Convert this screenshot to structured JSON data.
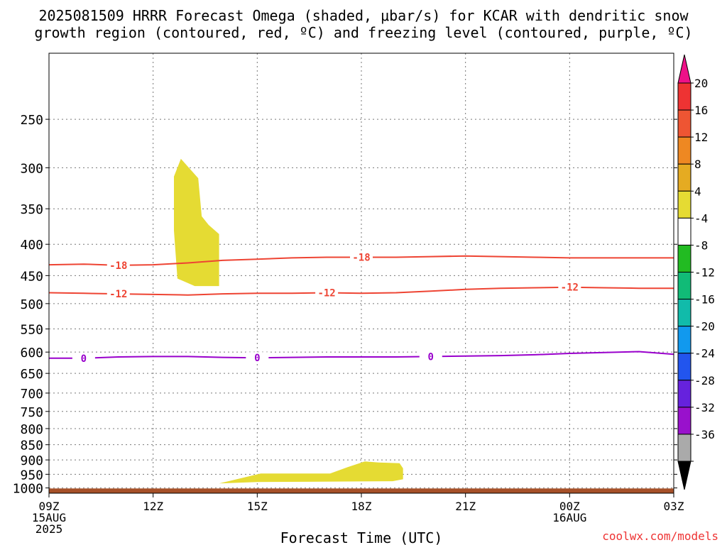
{
  "title_line1": "2025081509 HRRR Forecast Omega (shaded, μbar/s) for KCAR with dendritic snow",
  "title_line2": "growth region (contoured, red, ºC) and freezing level (contoured, purple, ºC)",
  "xlabel": "Forecast Time (UTC)",
  "credit": "coolwx.com/models",
  "chart_data": {
    "type": "contour",
    "x_range_hours": [
      0,
      18
    ],
    "y_axis": {
      "scale": "log-pressure",
      "range_mb": [
        195,
        1020
      ],
      "inverted": true
    },
    "x_ticks": [
      {
        "hour": 0,
        "lines": [
          "09Z",
          "15AUG",
          "2025"
        ]
      },
      {
        "hour": 3,
        "lines": [
          "12Z"
        ]
      },
      {
        "hour": 6,
        "lines": [
          "15Z"
        ]
      },
      {
        "hour": 9,
        "lines": [
          "18Z"
        ]
      },
      {
        "hour": 12,
        "lines": [
          "21Z"
        ]
      },
      {
        "hour": 15,
        "lines": [
          "00Z",
          "16AUG"
        ]
      },
      {
        "hour": 18,
        "lines": [
          "03Z"
        ]
      }
    ],
    "y_ticks": [
      250,
      300,
      350,
      400,
      450,
      500,
      550,
      600,
      650,
      700,
      750,
      800,
      850,
      900,
      950,
      1000
    ],
    "grid": true,
    "contours": [
      {
        "name": "-18",
        "color": "#ee4433",
        "points": [
          [
            0,
            432
          ],
          [
            1,
            431
          ],
          [
            2,
            433
          ],
          [
            3,
            432
          ],
          [
            4,
            429
          ],
          [
            5,
            425
          ],
          [
            6,
            423
          ],
          [
            7,
            421
          ],
          [
            8,
            420
          ],
          [
            9,
            420
          ],
          [
            10,
            420
          ],
          [
            11,
            419
          ],
          [
            12,
            418
          ],
          [
            13,
            419
          ],
          [
            14,
            420
          ],
          [
            15,
            421
          ],
          [
            16,
            421
          ],
          [
            17,
            421
          ],
          [
            18,
            421
          ]
        ],
        "label_hours": [
          2,
          9
        ]
      },
      {
        "name": "-12",
        "color": "#ee4433",
        "points": [
          [
            0,
            480
          ],
          [
            1,
            481
          ],
          [
            2,
            482
          ],
          [
            3,
            483
          ],
          [
            4,
            484
          ],
          [
            5,
            482
          ],
          [
            6,
            481
          ],
          [
            7,
            481
          ],
          [
            8,
            480
          ],
          [
            9,
            481
          ],
          [
            10,
            480
          ],
          [
            11,
            477
          ],
          [
            12,
            474
          ],
          [
            13,
            472
          ],
          [
            14,
            471
          ],
          [
            15,
            470
          ],
          [
            16,
            471
          ],
          [
            17,
            472
          ],
          [
            18,
            472
          ]
        ],
        "label_hours": [
          2,
          8,
          15
        ]
      },
      {
        "name": "0",
        "color": "#9900cc",
        "points": [
          [
            0,
            614
          ],
          [
            1,
            614
          ],
          [
            2,
            611
          ],
          [
            3,
            610
          ],
          [
            4,
            610
          ],
          [
            5,
            612
          ],
          [
            6,
            613
          ],
          [
            7,
            612
          ],
          [
            8,
            611
          ],
          [
            9,
            611
          ],
          [
            10,
            611
          ],
          [
            11,
            610
          ],
          [
            12,
            609
          ],
          [
            13,
            608
          ],
          [
            14,
            606
          ],
          [
            15,
            603
          ],
          [
            16,
            601
          ],
          [
            17,
            599
          ],
          [
            18,
            605
          ]
        ],
        "label_hours": [
          1,
          6,
          11
        ]
      }
    ],
    "shaded_regions": [
      {
        "value_range": [
          4,
          8
        ],
        "color": "#e5db33",
        "points": [
          [
            3.6,
            310
          ],
          [
            3.8,
            290
          ],
          [
            4.3,
            312
          ],
          [
            4.4,
            360
          ],
          [
            4.6,
            372
          ],
          [
            4.9,
            385
          ],
          [
            4.9,
            468
          ],
          [
            4.2,
            468
          ],
          [
            3.7,
            455
          ],
          [
            3.6,
            380
          ],
          [
            3.6,
            330
          ]
        ]
      },
      {
        "value_range": [
          4,
          8
        ],
        "color": "#e5db33",
        "points": [
          [
            4.9,
            983
          ],
          [
            5.5,
            965
          ],
          [
            6.1,
            947
          ],
          [
            8.1,
            947
          ],
          [
            8.6,
            925
          ],
          [
            9.1,
            905
          ],
          [
            9.5,
            909
          ],
          [
            10.1,
            911
          ],
          [
            10.2,
            929
          ],
          [
            10.2,
            968
          ],
          [
            9.9,
            975
          ],
          [
            7.5,
            977
          ],
          [
            6.0,
            978
          ]
        ]
      }
    ],
    "terrain": {
      "color": "#a65028",
      "label": "below ground",
      "top_mb": 1002
    },
    "colorbar": {
      "entries": [
        {
          "color": "#ee1188",
          "label": ""
        },
        {
          "color": "#ee3333",
          "label": "20"
        },
        {
          "color": "#ee5533",
          "label": "16"
        },
        {
          "color": "#ee8822",
          "label": "12"
        },
        {
          "color": "#e5ab22",
          "label": "8"
        },
        {
          "color": "#e5db33",
          "label": "4"
        },
        {
          "color": "#ffffff",
          "label": "-4"
        },
        {
          "color": "#22bb22",
          "label": "-8"
        },
        {
          "color": "#11bb77",
          "label": "-12"
        },
        {
          "color": "#11bbaa",
          "label": "-16"
        },
        {
          "color": "#1199ee",
          "label": "-20"
        },
        {
          "color": "#2255ee",
          "label": "-24"
        },
        {
          "color": "#6622dd",
          "label": "-28"
        },
        {
          "color": "#9911cc",
          "label": "-32"
        },
        {
          "color": "#aaaaaa",
          "label": "-36"
        },
        {
          "color": "#000000",
          "label": ""
        }
      ]
    }
  }
}
